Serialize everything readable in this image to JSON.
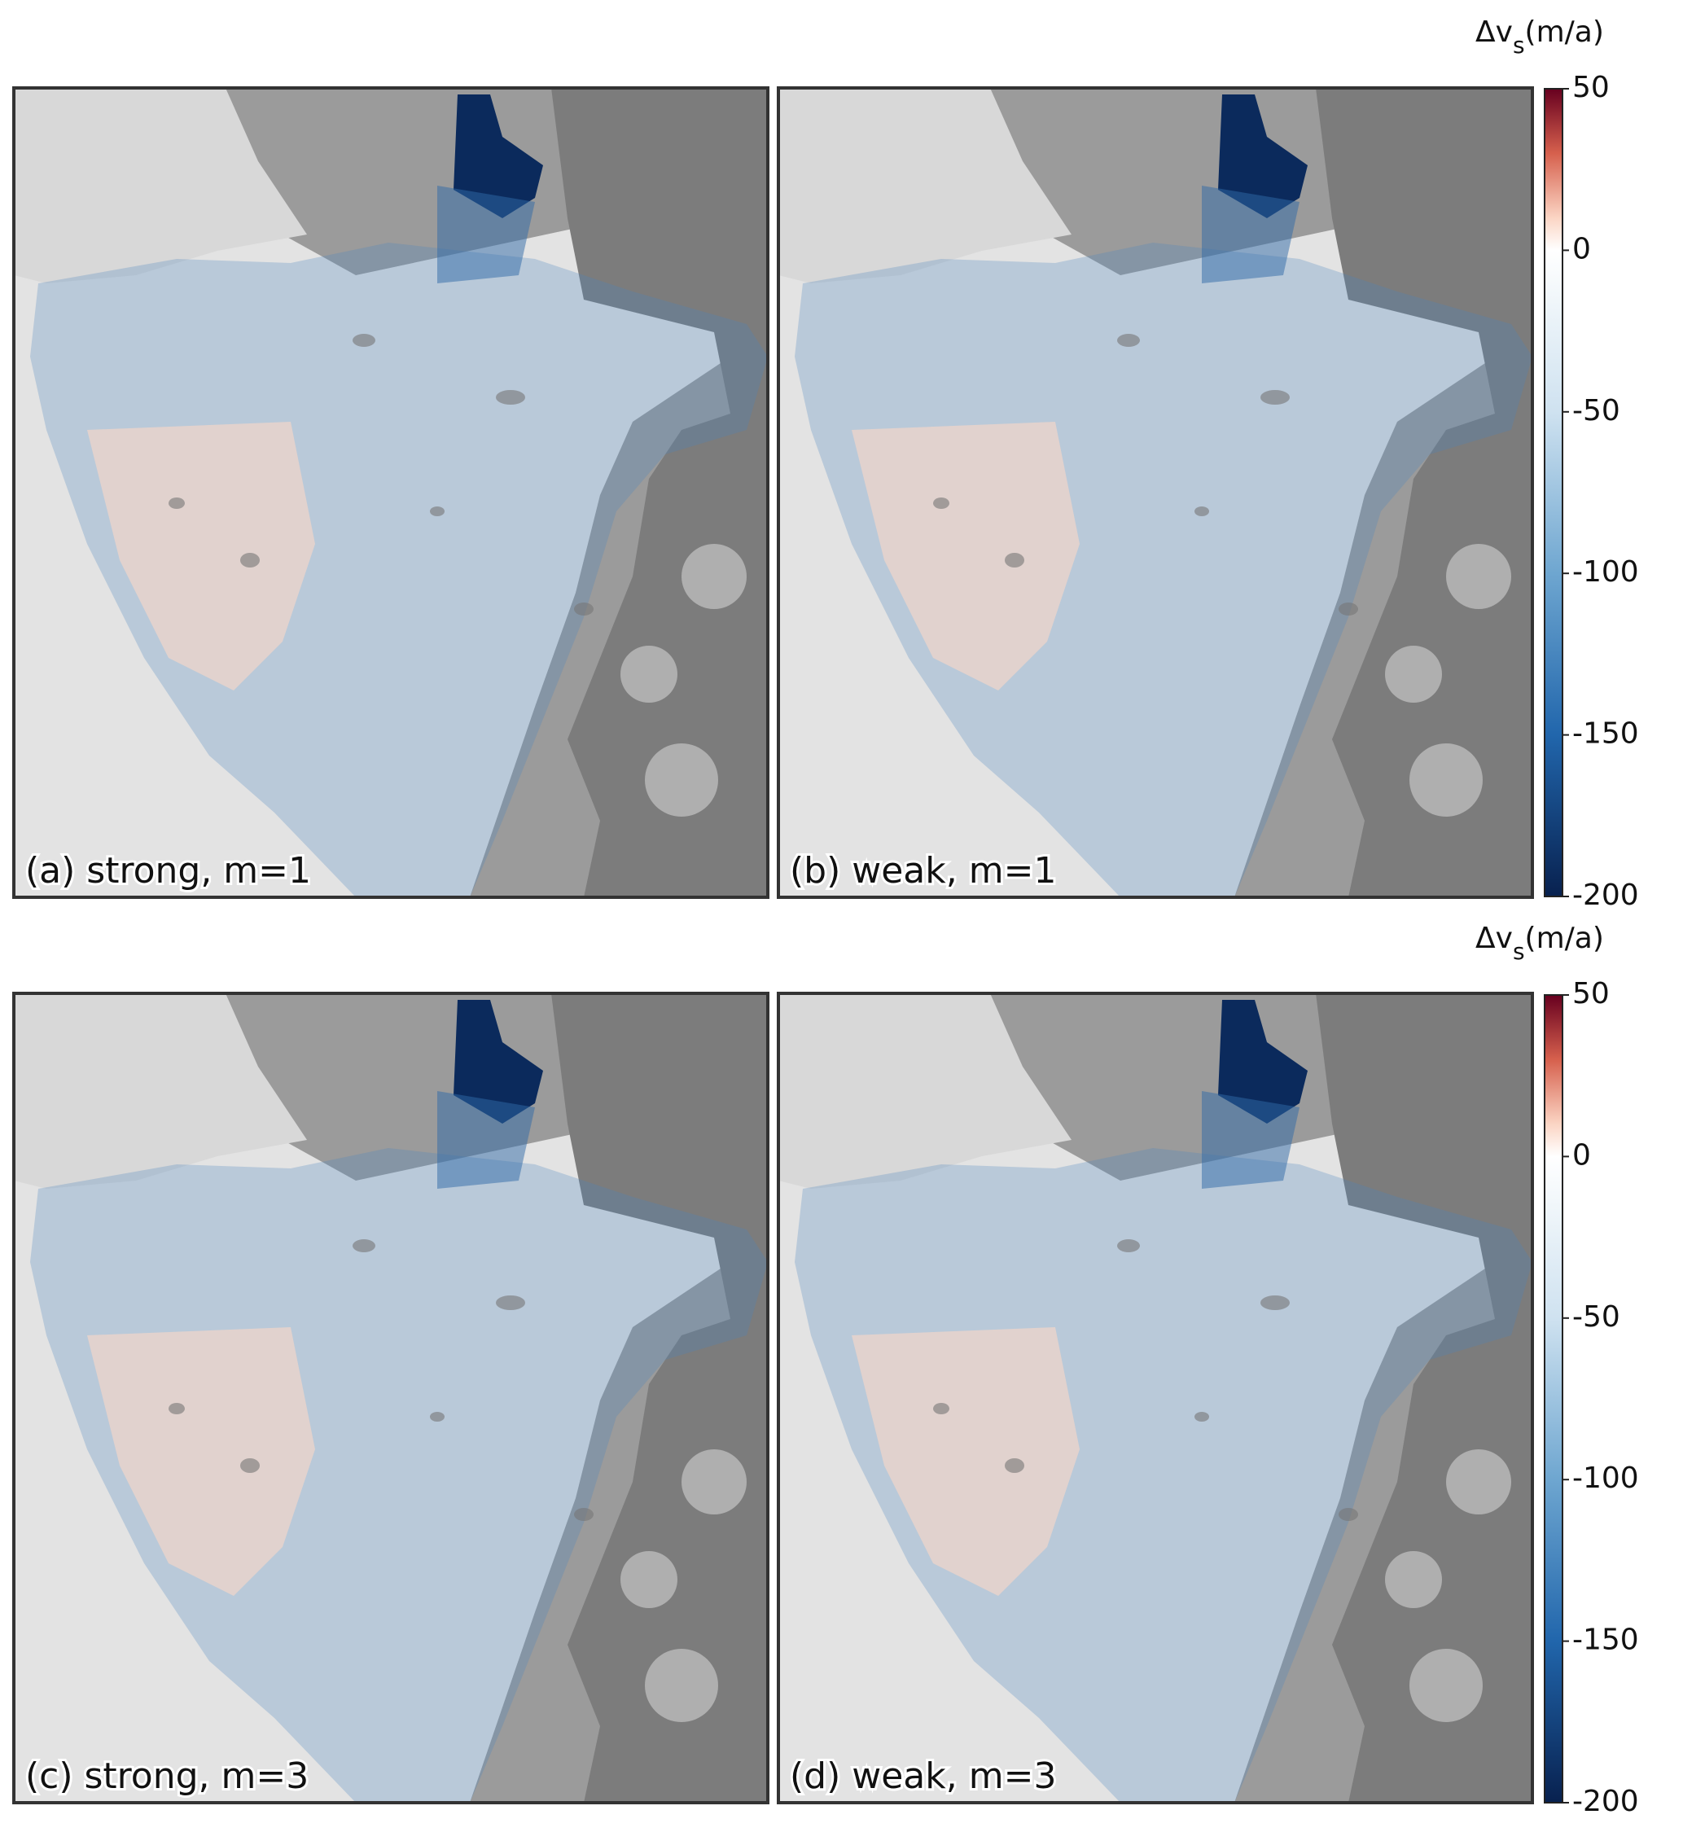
{
  "panels": [
    {
      "label": "(a) strong, m=1"
    },
    {
      "label": "(b) weak, m=1"
    },
    {
      "label": "(c) strong, m=3"
    },
    {
      "label": "(d) weak, m=3"
    }
  ],
  "colorbars": [
    {
      "label_main": "Δv",
      "label_sub": "s",
      "label_unit": "(m/a)",
      "clim": [
        -200,
        50
      ],
      "ticks": [
        50,
        0,
        -50,
        -100,
        -150,
        -200
      ],
      "colormap": [
        {
          "value": 50,
          "color": "#67001f"
        },
        {
          "value": 30,
          "color": "#d6604d"
        },
        {
          "value": 10,
          "color": "#fbd5c4"
        },
        {
          "value": 0,
          "color": "#ffffff"
        },
        {
          "value": -50,
          "color": "#cfe2f0"
        },
        {
          "value": -100,
          "color": "#6ea6d0"
        },
        {
          "value": -150,
          "color": "#2166ac"
        },
        {
          "value": -200,
          "color": "#08214f"
        }
      ]
    },
    {
      "label_main": "Δv",
      "label_sub": "s",
      "label_unit": "(m/a)",
      "clim": [
        -200,
        50
      ],
      "ticks": [
        50,
        0,
        -50,
        -100,
        -150,
        -200
      ],
      "colormap": [
        {
          "value": 50,
          "color": "#67001f"
        },
        {
          "value": 30,
          "color": "#d6604d"
        },
        {
          "value": 10,
          "color": "#fbd5c4"
        },
        {
          "value": 0,
          "color": "#ffffff"
        },
        {
          "value": -50,
          "color": "#cfe2f0"
        },
        {
          "value": -100,
          "color": "#6ea6d0"
        },
        {
          "value": -150,
          "color": "#2166ac"
        },
        {
          "value": -200,
          "color": "#08214f"
        }
      ]
    }
  ]
}
